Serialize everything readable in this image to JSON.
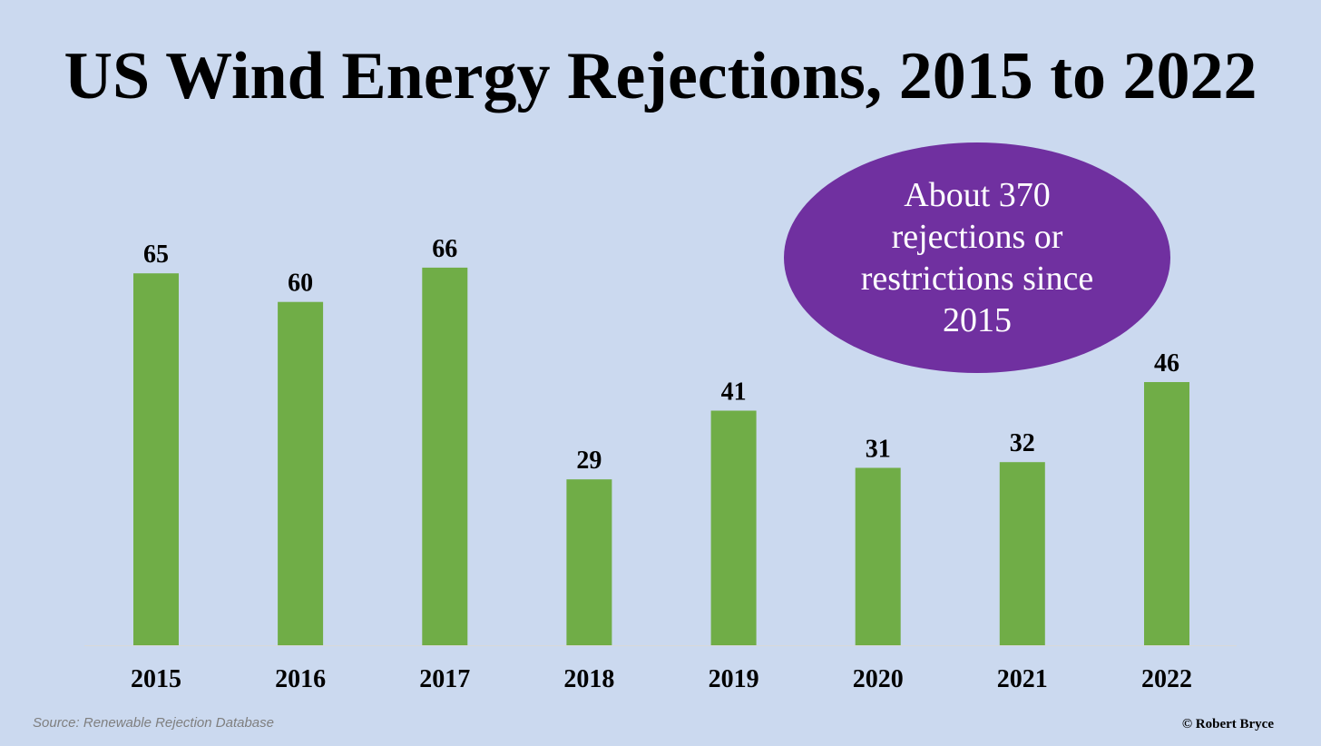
{
  "colors": {
    "background": "#cbd9ef",
    "bar": "#70ad47",
    "bubble": "#7030a0",
    "baseline": "#d9d9d9"
  },
  "chart_data": {
    "type": "bar",
    "title": "US Wind Energy Rejections, 2015 to 2022",
    "xlabel": "",
    "ylabel": "",
    "categories": [
      "2015",
      "2016",
      "2017",
      "2018",
      "2019",
      "2020",
      "2021",
      "2022"
    ],
    "values": [
      65,
      60,
      66,
      29,
      41,
      31,
      32,
      46
    ],
    "data_labels": [
      "65",
      "60",
      "66",
      "29",
      "41",
      "31",
      "32",
      "46"
    ],
    "ylim": [
      0,
      66
    ],
    "grid": false,
    "legend": "none",
    "annotation": "About 370 rejections or restrictions since 2015"
  },
  "footer": {
    "source": "Source: Renewable Rejection Database",
    "credit": "© Robert Bryce"
  }
}
